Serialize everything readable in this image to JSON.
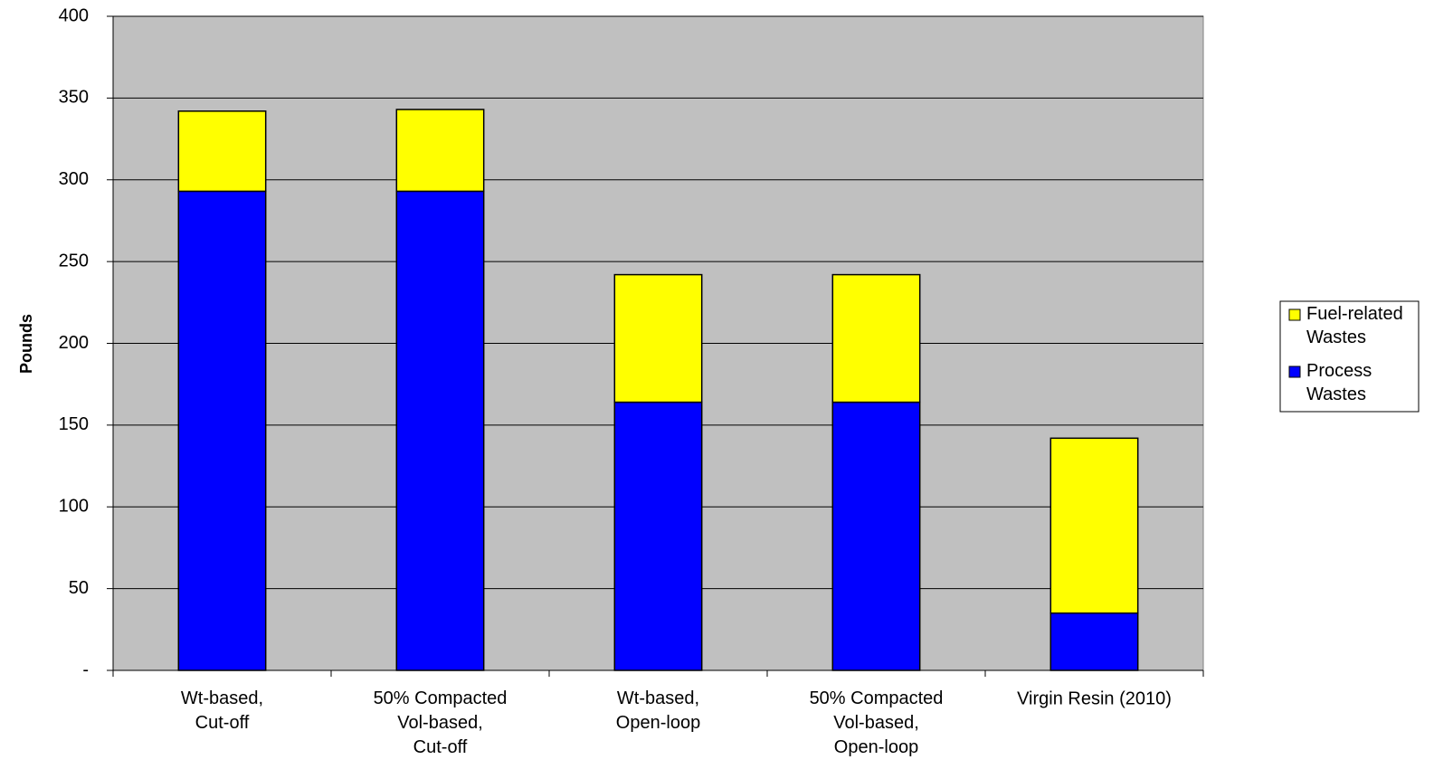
{
  "chart_data": {
    "type": "stacked_bar",
    "y_label": "Pounds",
    "categories": [
      "Wt-based,\nCut-off",
      "50% Compacted\nVol-based,\nCut-off",
      "Wt-based,\nOpen-loop",
      "50% Compacted\nVol-based,\nOpen-loop",
      "Virgin Resin (2010)"
    ],
    "series": [
      {
        "name": "Process\nWastes",
        "color": "#0000ff",
        "values": [
          293,
          293,
          164,
          164,
          35
        ]
      },
      {
        "name": "Fuel-related\nWastes",
        "color": "#ffff00",
        "values": [
          49,
          50,
          78,
          78,
          107
        ]
      }
    ],
    "ylim": [
      0,
      400
    ],
    "yticks": [
      {
        "value": 0,
        "label": "-"
      },
      50,
      100,
      150,
      200,
      250,
      300,
      350,
      400
    ],
    "grid": true,
    "legend": "right",
    "plot_background": "#c0c0c0"
  }
}
